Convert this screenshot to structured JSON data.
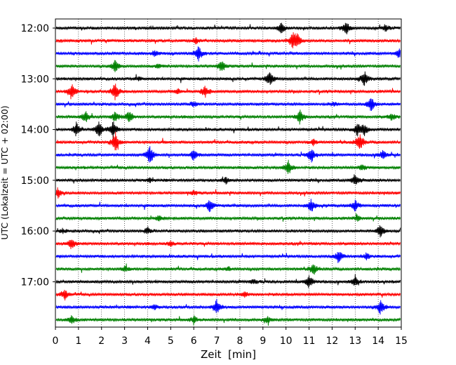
{
  "chart_data": {
    "type": "line",
    "title": "",
    "xlabel": "Zeit  [min]",
    "ylabel": "UTC (Lokalzeit = UTC + 02:00)",
    "xlim": [
      0,
      15
    ],
    "x_ticks": [
      0,
      1,
      2,
      3,
      4,
      5,
      6,
      7,
      8,
      9,
      10,
      11,
      12,
      13,
      14,
      15
    ],
    "x_tick_labels": [
      "0",
      "1",
      "2",
      "3",
      "4",
      "5",
      "6",
      "7",
      "8",
      "9",
      "10",
      "11",
      "12",
      "13",
      "14",
      "15"
    ],
    "y_tick_labels": [
      "12:00",
      "13:00",
      "14:00",
      "15:00",
      "16:00",
      "17:00"
    ],
    "trace_interval_minutes": 15,
    "start_time": "12:00",
    "trace_colors": [
      "#000000",
      "#ff0000",
      "#0000ff",
      "#008000"
    ],
    "grid": "vertical dotted",
    "traces": [
      {
        "start": "12:00",
        "color": "#000000",
        "events": [
          [
            9.8,
            8
          ],
          [
            12.6,
            10
          ],
          [
            14.3,
            5
          ]
        ]
      },
      {
        "start": "12:15",
        "color": "#ff0000",
        "events": [
          [
            10.3,
            12
          ],
          [
            10.5,
            8
          ],
          [
            6.1,
            4
          ]
        ]
      },
      {
        "start": "12:30",
        "color": "#0000ff",
        "events": [
          [
            6.2,
            12
          ],
          [
            4.3,
            4
          ],
          [
            14.9,
            6
          ]
        ]
      },
      {
        "start": "12:45",
        "color": "#008000",
        "events": [
          [
            2.6,
            9
          ],
          [
            7.2,
            9
          ],
          [
            4.5,
            3
          ]
        ]
      },
      {
        "start": "13:00",
        "color": "#000000",
        "events": [
          [
            9.3,
            11
          ],
          [
            13.4,
            11
          ],
          [
            3.6,
            3
          ]
        ]
      },
      {
        "start": "13:15",
        "color": "#ff0000",
        "events": [
          [
            0.7,
            12
          ],
          [
            2.6,
            15
          ],
          [
            6.5,
            9
          ],
          [
            5.3,
            4
          ]
        ]
      },
      {
        "start": "13:30",
        "color": "#0000ff",
        "events": [
          [
            6.0,
            4
          ],
          [
            13.7,
            12
          ],
          [
            12.1,
            3
          ]
        ]
      },
      {
        "start": "13:45",
        "color": "#008000",
        "events": [
          [
            1.3,
            9
          ],
          [
            2.6,
            8
          ],
          [
            3.2,
            10
          ],
          [
            10.6,
            12
          ],
          [
            14.6,
            5
          ]
        ]
      },
      {
        "start": "14:00",
        "color": "#000000",
        "events": [
          [
            0.9,
            11
          ],
          [
            1.9,
            12
          ],
          [
            2.5,
            14
          ],
          [
            13.1,
            10
          ],
          [
            13.4,
            8
          ]
        ]
      },
      {
        "start": "14:15",
        "color": "#ff0000",
        "events": [
          [
            2.6,
            15
          ],
          [
            13.2,
            14
          ],
          [
            11.2,
            5
          ]
        ]
      },
      {
        "start": "14:30",
        "color": "#0000ff",
        "events": [
          [
            4.1,
            15
          ],
          [
            6.0,
            8
          ],
          [
            11.1,
            11
          ],
          [
            14.2,
            7
          ]
        ]
      },
      {
        "start": "14:45",
        "color": "#008000",
        "events": [
          [
            10.1,
            11
          ],
          [
            13.3,
            5
          ]
        ]
      },
      {
        "start": "15:00",
        "color": "#000000",
        "events": [
          [
            7.4,
            5
          ],
          [
            13.0,
            10
          ],
          [
            4.1,
            3
          ]
        ]
      },
      {
        "start": "15:15",
        "color": "#ff0000",
        "events": [
          [
            0.1,
            8
          ],
          [
            6.0,
            3
          ]
        ]
      },
      {
        "start": "15:30",
        "color": "#0000ff",
        "events": [
          [
            6.7,
            10
          ],
          [
            11.1,
            10
          ],
          [
            13.0,
            8
          ]
        ]
      },
      {
        "start": "15:45",
        "color": "#008000",
        "events": [
          [
            4.5,
            4
          ],
          [
            13.1,
            4
          ]
        ]
      },
      {
        "start": "16:00",
        "color": "#000000",
        "events": [
          [
            4.0,
            5
          ],
          [
            14.1,
            9
          ],
          [
            0.3,
            3
          ]
        ]
      },
      {
        "start": "16:15",
        "color": "#ff0000",
        "events": [
          [
            0.7,
            9
          ],
          [
            5.0,
            4
          ]
        ]
      },
      {
        "start": "16:30",
        "color": "#0000ff",
        "events": [
          [
            12.3,
            11
          ],
          [
            13.5,
            4
          ]
        ]
      },
      {
        "start": "16:45",
        "color": "#008000",
        "events": [
          [
            3.0,
            4
          ],
          [
            11.2,
            8
          ],
          [
            7.5,
            3
          ]
        ]
      },
      {
        "start": "17:00",
        "color": "#000000",
        "events": [
          [
            11.0,
            10
          ],
          [
            13.0,
            7
          ],
          [
            8.6,
            4
          ]
        ]
      },
      {
        "start": "17:15",
        "color": "#ff0000",
        "events": [
          [
            0.4,
            8
          ],
          [
            8.2,
            4
          ]
        ]
      },
      {
        "start": "17:30",
        "color": "#0000ff",
        "events": [
          [
            7.0,
            11
          ],
          [
            14.1,
            11
          ],
          [
            4.3,
            4
          ]
        ]
      },
      {
        "start": "17:45",
        "color": "#008000",
        "events": [
          [
            0.7,
            7
          ],
          [
            6.0,
            5
          ],
          [
            9.2,
            5
          ]
        ]
      }
    ]
  }
}
